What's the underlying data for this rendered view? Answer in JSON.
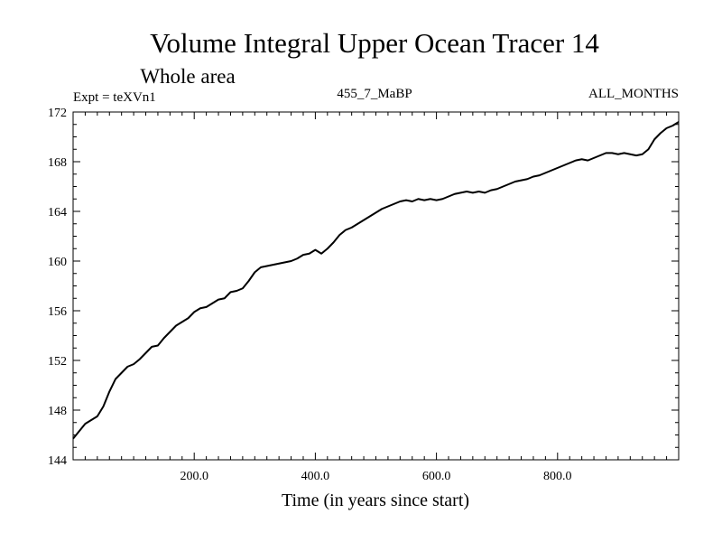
{
  "chart_data": {
    "type": "line",
    "title": "Volume Integral Upper Ocean Tracer 14",
    "subtitle": "Whole area",
    "left_label": "Expt = teXVn1",
    "center_label": "455_7_MaBP",
    "right_label": "ALL_MONTHS",
    "xlabel": "Time (in years since start)",
    "ylabel": "",
    "xlim": [
      0,
      1000
    ],
    "ylim": [
      144,
      172
    ],
    "x_ticks": [
      200,
      400,
      600,
      800
    ],
    "x_tick_labels": [
      "200.0",
      "400.0",
      "600.0",
      "800.0"
    ],
    "y_ticks": [
      144,
      148,
      152,
      156,
      160,
      164,
      168,
      172
    ],
    "y_tick_labels": [
      "144",
      "148",
      "152",
      "156",
      "160",
      "164",
      "168",
      "172"
    ],
    "grid": false,
    "series": [
      {
        "name": "Volume Integral Upper Ocean Tracer 14",
        "color": "#000000",
        "x": [
          0,
          10,
          20,
          30,
          40,
          50,
          60,
          70,
          80,
          90,
          100,
          110,
          120,
          130,
          140,
          150,
          160,
          170,
          180,
          190,
          200,
          210,
          220,
          230,
          240,
          250,
          260,
          270,
          280,
          290,
          300,
          310,
          320,
          330,
          340,
          350,
          360,
          370,
          380,
          390,
          400,
          410,
          420,
          430,
          440,
          450,
          460,
          470,
          480,
          490,
          500,
          510,
          520,
          530,
          540,
          550,
          560,
          570,
          580,
          590,
          600,
          610,
          620,
          630,
          640,
          650,
          660,
          670,
          680,
          690,
          700,
          710,
          720,
          730,
          740,
          750,
          760,
          770,
          780,
          790,
          800,
          810,
          820,
          830,
          840,
          850,
          860,
          870,
          880,
          890,
          900,
          910,
          920,
          930,
          940,
          950,
          960,
          970,
          980,
          990,
          1000
        ],
        "values": [
          145.7,
          146.3,
          146.9,
          147.2,
          147.5,
          148.3,
          149.5,
          150.5,
          151.0,
          151.5,
          151.7,
          152.1,
          152.6,
          153.1,
          153.2,
          153.8,
          154.3,
          154.8,
          155.1,
          155.4,
          155.9,
          156.2,
          156.3,
          156.6,
          156.9,
          157.0,
          157.5,
          157.6,
          157.8,
          158.4,
          159.1,
          159.5,
          159.6,
          159.7,
          159.8,
          159.9,
          160.0,
          160.2,
          160.5,
          160.6,
          160.9,
          160.6,
          161.0,
          161.5,
          162.1,
          162.5,
          162.7,
          163.0,
          163.3,
          163.6,
          163.9,
          164.2,
          164.4,
          164.6,
          164.8,
          164.9,
          164.8,
          165.0,
          164.9,
          165.0,
          164.9,
          165.0,
          165.2,
          165.4,
          165.5,
          165.6,
          165.5,
          165.6,
          165.5,
          165.7,
          165.8,
          166.0,
          166.2,
          166.4,
          166.5,
          166.6,
          166.8,
          166.9,
          167.1,
          167.3,
          167.5,
          167.7,
          167.9,
          168.1,
          168.2,
          168.1,
          168.3,
          168.5,
          168.7,
          168.7,
          168.6,
          168.7,
          168.6,
          168.5,
          168.6,
          169.0,
          169.8,
          170.3,
          170.7,
          170.9,
          171.2
        ]
      }
    ]
  }
}
